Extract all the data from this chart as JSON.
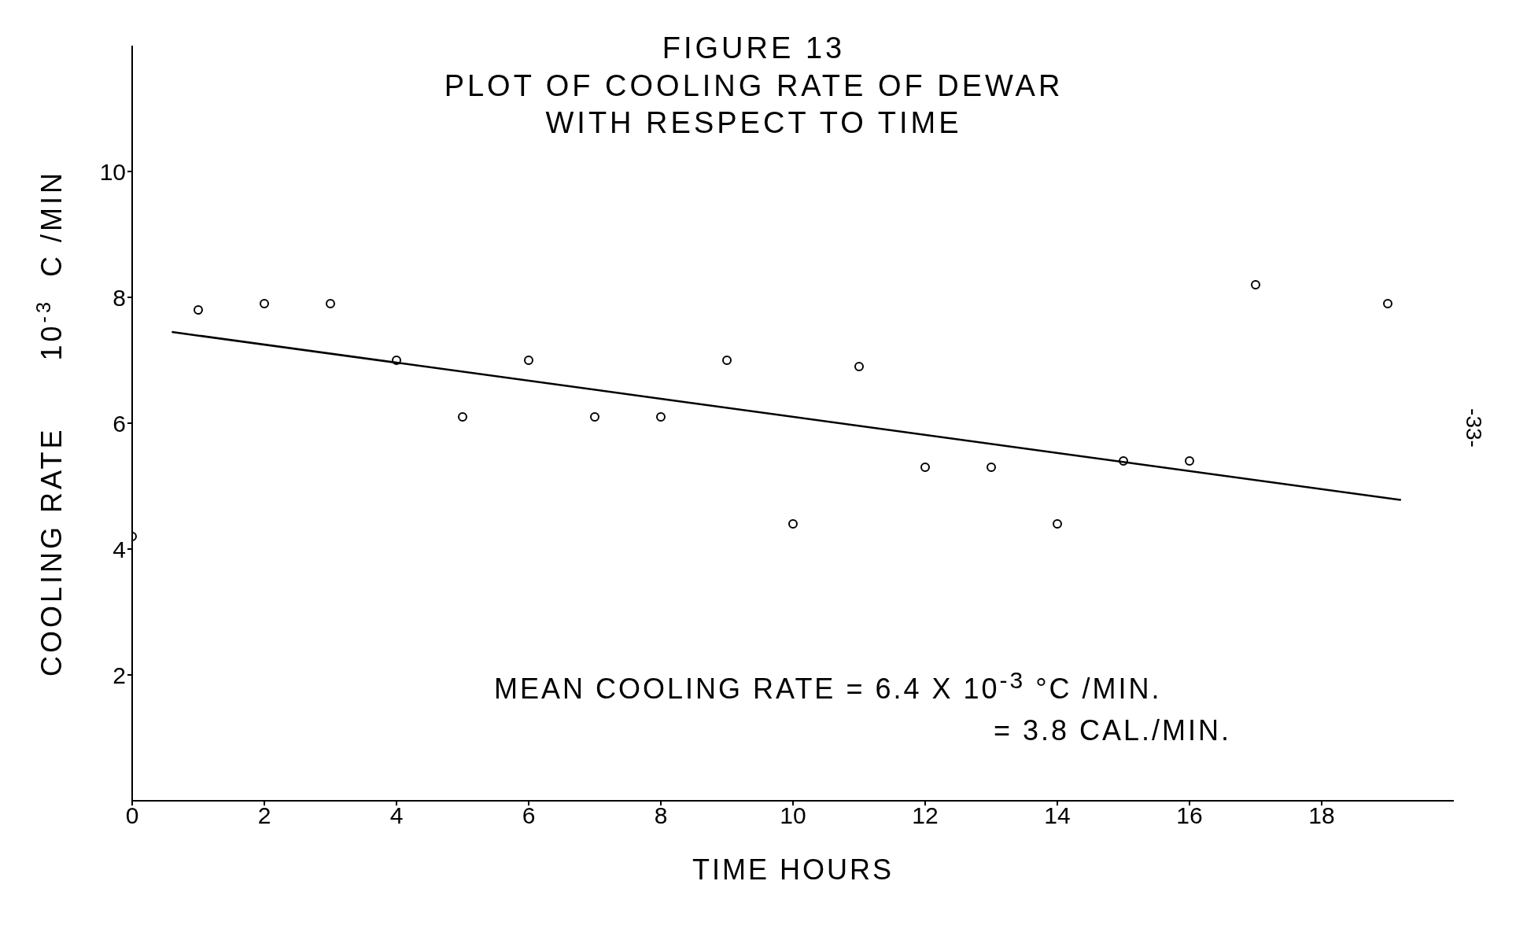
{
  "chart_data": {
    "type": "scatter",
    "title": "FIGURE 13",
    "subtitle": "PLOT OF COOLING RATE OF DEWAR\nWITH RESPECT TO TIME",
    "xlabel": "TIME      HOURS",
    "ylabel": "COOLING RATE      10$^{-3}$ C /MIN",
    "annotations": [
      "MEAN COOLING RATE = 6.4 X 10$^{-3}$ °C /MIN.",
      "= 3.8 CAL./MIN.",
      "-33-"
    ],
    "series": [
      {
        "color": "#000000",
        "marker": "circle",
        "x": [
          0,
          1,
          2,
          3,
          4,
          5,
          6,
          7,
          8,
          9,
          10,
          11,
          12,
          13,
          14,
          15,
          16,
          17,
          19
        ],
        "values": [
          4.2,
          7.8,
          7.9,
          7.9,
          7.0,
          6.1,
          7.0,
          6.1,
          6.1,
          7.0,
          4.4,
          6.9,
          5.3,
          5.3,
          4.4,
          5.4,
          5.4,
          8.2,
          7.9
        ]
      },
      {
        "type": "line",
        "marker": "none",
        "color": "#000000",
        "x": [
          0.6,
          19.2
        ],
        "values": [
          7.45,
          4.78
        ]
      }
    ],
    "xlim": [
      0,
      20
    ],
    "ylim": [
      0,
      12
    ],
    "xticks": [
      0,
      2,
      4,
      6,
      8,
      10,
      12,
      14,
      16,
      18
    ],
    "yticks": [
      2,
      4,
      6,
      8,
      10
    ],
    "grid": false,
    "legend": false,
    "line_style": "solid"
  }
}
